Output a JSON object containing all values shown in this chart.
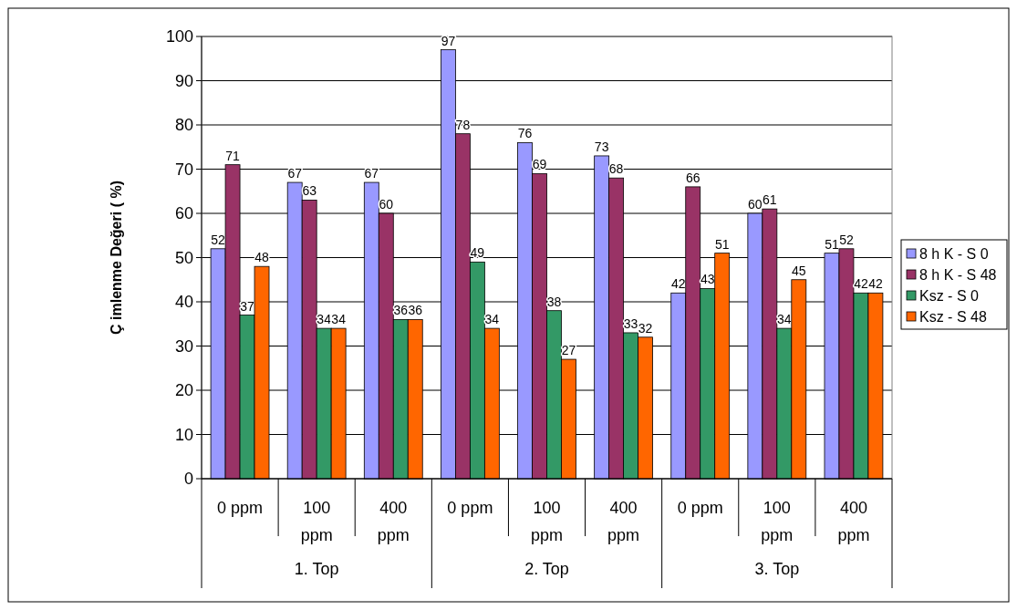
{
  "chart_data": {
    "type": "bar",
    "ylabel": "Ç imlenme Değeri ( %)",
    "categories": [
      "0 ppm",
      "100 ppm",
      "400 ppm",
      "0 ppm",
      "100 ppm",
      "400 ppm",
      "0 ppm",
      "100 ppm",
      "400 ppm"
    ],
    "annotations": [
      "1. Top",
      "2. Top",
      "3. Top"
    ],
    "series": [
      {
        "name": "8 h K - S 0",
        "color": "#9999ff",
        "values": [
          52,
          67,
          67,
          97,
          76,
          73,
          42,
          60,
          51
        ]
      },
      {
        "name": "8 h K - S 48",
        "color": "#993366",
        "values": [
          71,
          63,
          60,
          78,
          69,
          68,
          66,
          61,
          52
        ]
      },
      {
        "name": "Ksz - S 0",
        "color": "#339966",
        "values": [
          37,
          34,
          36,
          49,
          38,
          33,
          43,
          34,
          42
        ]
      },
      {
        "name": "Ksz - S 48",
        "color": "#ff6600",
        "values": [
          48,
          34,
          36,
          34,
          27,
          32,
          51,
          45,
          42
        ]
      }
    ],
    "ylim": [
      0,
      100
    ],
    "yticks": [
      0,
      10,
      20,
      30,
      40,
      50,
      60,
      70,
      80,
      90,
      100
    ],
    "grid": "y",
    "legend": "right",
    "data_labels": true
  }
}
